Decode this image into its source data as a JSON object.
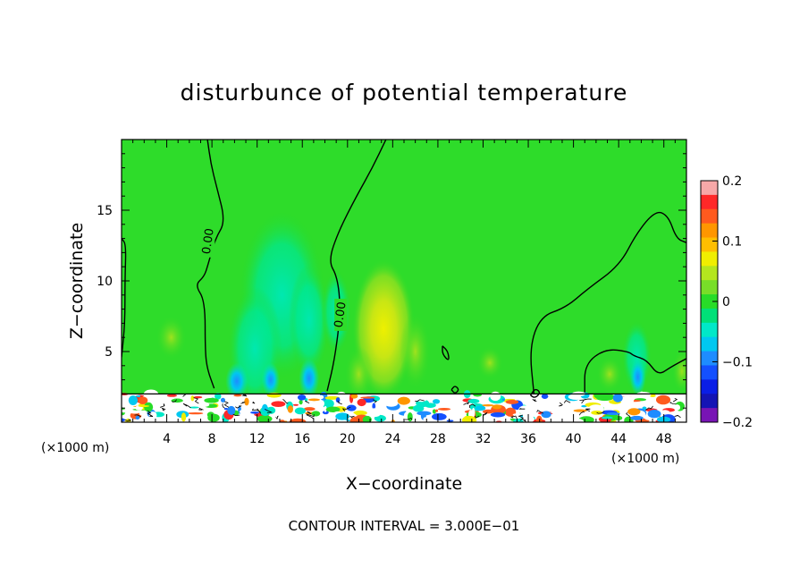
{
  "chart_data": {
    "type": "heatmap",
    "title": "disturbunce of potential temperature",
    "xlabel": "X−coordinate",
    "ylabel": "Z−coordinate",
    "x_unit_left": "(×1000 m)",
    "x_unit_right": "(×1000 m)",
    "footer": "CONTOUR INTERVAL = 3.000E−01",
    "xlim": [
      0,
      50
    ],
    "ylim": [
      0,
      20
    ],
    "x_ticks": [
      4,
      8,
      12,
      16,
      20,
      24,
      28,
      32,
      36,
      40,
      44,
      48
    ],
    "y_ticks": [
      5,
      10,
      15
    ],
    "colorbar": {
      "min": -0.2,
      "max": 0.2,
      "tick_values": [
        0.2,
        0.1,
        0,
        -0.1,
        -0.2
      ],
      "tick_labels": [
        "0.2",
        "0.1",
        "0",
        "−0.1",
        "−0.2"
      ],
      "colors": [
        "#f7a8a8",
        "#ff2828",
        "#ff5a1e",
        "#ff9600",
        "#ffbe00",
        "#f0ee00",
        "#b4e61e",
        "#78de28",
        "#28dc28",
        "#00e078",
        "#00e8c8",
        "#00c8f0",
        "#1e8cff",
        "#1450ff",
        "#0a1ee6",
        "#1414b4",
        "#7814b4"
      ]
    },
    "contour_labels": [
      {
        "text": "0.00",
        "x": 7.7,
        "z": 12.8
      },
      {
        "text": "0.00",
        "x": 19.4,
        "z": 7.6
      }
    ]
  }
}
